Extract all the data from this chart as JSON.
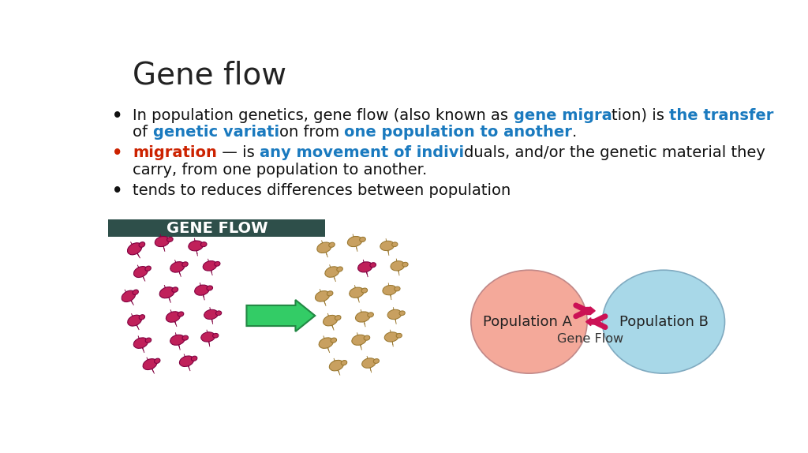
{
  "title": "Gene flow",
  "background_color": "#ffffff",
  "title_color": "#222222",
  "title_fontsize": 28,
  "bullet_fontsize": 14,
  "blue_color": "#1a7abf",
  "red_color": "#cc2200",
  "dark_color": "#111111",
  "gene_flow_banner_bg": "#2e4f4a",
  "gene_flow_banner_text": "GENE FLOW",
  "gene_flow_banner_text_color": "#ffffff",
  "pop_a_color": "#f4a99a",
  "pop_b_color": "#a8d8e8",
  "pop_a_label": "Population A",
  "pop_b_label": "Population B",
  "gene_flow_label": "Gene Flow",
  "arrow_color": "#cc1155",
  "pop_label_color": "#222222",
  "gene_flow_label_color": "#333333",
  "beetle_magenta_face": "#c0205a",
  "beetle_magenta_edge": "#800040",
  "beetle_tan_face": "#c8a060",
  "beetle_tan_edge": "#9a7830",
  "arrow_green_face": "#33cc66",
  "arrow_green_edge": "#228844"
}
